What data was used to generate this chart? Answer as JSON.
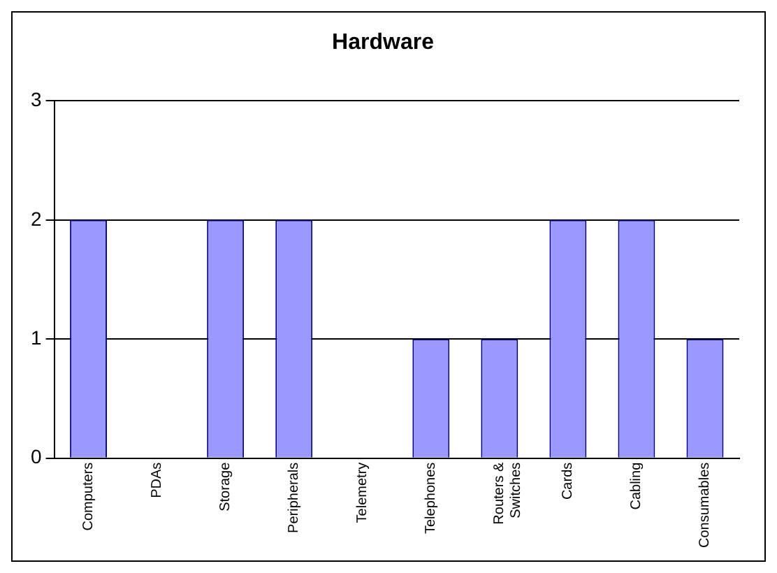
{
  "chart_data": {
    "type": "bar",
    "title": "Hardware",
    "categories": [
      "Computers",
      "PDAs",
      "Storage",
      "Peripherals",
      "Telemetry",
      "Telephones",
      "Routers & Switches",
      "Cards",
      "Cabling",
      "Consumables"
    ],
    "values": [
      2,
      0,
      2,
      2,
      0,
      1,
      1,
      2,
      2,
      1
    ],
    "color": "#9999ff",
    "ylim": [
      0,
      3
    ],
    "yticks": [
      0,
      1,
      2,
      3
    ],
    "grid": "y",
    "legend": false
  }
}
